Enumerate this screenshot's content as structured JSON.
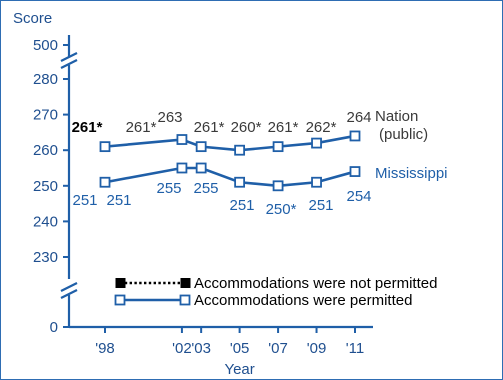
{
  "chart_data": {
    "type": "line",
    "ylabel": "Score",
    "xlabel": "Year",
    "x": [
      "'98",
      "'02",
      "'03",
      "'05",
      "'07",
      "'09",
      "'11"
    ],
    "x_positions_years": [
      1998,
      2002,
      2003,
      2005,
      2007,
      2009,
      2011
    ],
    "y_ticks": [
      0,
      230,
      240,
      250,
      260,
      270,
      280,
      500
    ],
    "ylim": [
      230,
      280
    ],
    "axis_breaks": [
      "between 0 and 230",
      "between 280 and 500"
    ],
    "series": [
      {
        "name": "Nation (public)",
        "values": [
          261,
          263,
          261,
          260,
          261,
          262,
          264
        ],
        "labels": [
          "261*",
          "263",
          "261*",
          "260*",
          "261*",
          "262*",
          "264"
        ]
      },
      {
        "name": "Mississippi",
        "values": [
          251,
          255,
          255,
          251,
          250,
          251,
          254
        ],
        "labels": [
          "251",
          "255",
          "255",
          "251",
          "250*",
          "251",
          "254"
        ]
      }
    ],
    "extra_labels": {
      "nation_1998_not_permitted": "261*",
      "mississippi_1998_not_permitted": "251"
    },
    "legend": {
      "placement": "bottom-right",
      "entries": [
        "Accommodations were not permitted",
        "Accommodations were permitted"
      ]
    },
    "grid": false,
    "colors": {
      "axis": "#1f5fa8",
      "series": "#1f5fa8",
      "nation_text": "#3a3a3a",
      "mississippi_text": "#1f5fa8",
      "not_permitted_marker": "#000000"
    }
  }
}
